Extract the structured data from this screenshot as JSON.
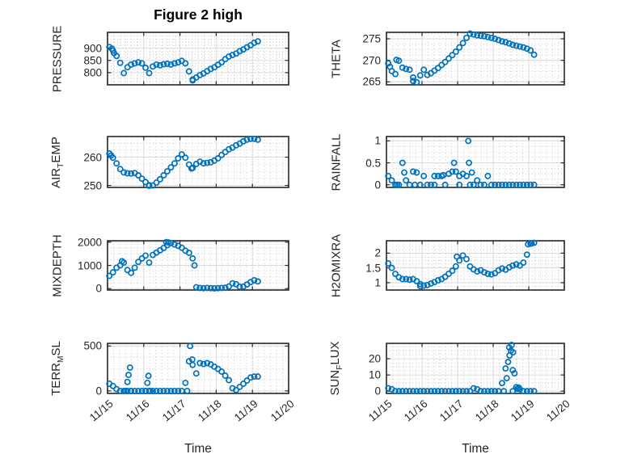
{
  "title": "Figure 2 high",
  "colors": {
    "marker": "#0072BD",
    "axes_box": "#262626",
    "major_grid": "#d9d9d9",
    "minor_grid": "#c9c9c9",
    "text": "#262626",
    "background": "#ffffff"
  },
  "chart_data": {
    "type": "scatter",
    "marker": "open-circle",
    "grid": "major solid + dotted minor grid",
    "legend": "none",
    "x_unit": "days since 11/15 00:00",
    "t_start": 0.05,
    "t_step": 0.1,
    "n_points": 42,
    "x_axis": {
      "xlim": [
        0,
        5
      ],
      "tick_values": [
        0,
        1,
        2,
        3,
        4,
        5
      ],
      "tick_labels": [
        "11/15",
        "11/16",
        "11/17",
        "11/18",
        "11/19",
        "11/20"
      ],
      "xlabel": "Time",
      "minor_per_day": 6
    },
    "subplots": [
      {
        "name": "PRESSURE",
        "ylabel_parts": [
          "PRESSURE",
          "",
          ""
        ],
        "ytick_values": [
          800,
          850,
          900
        ],
        "ytick_labels": [
          "800",
          "850",
          "900"
        ],
        "ylim": [
          750,
          965
        ],
        "show_x_tick_labels": false,
        "values": [
          905,
          890,
          868,
          840,
          798,
          822,
          833,
          838,
          842,
          838,
          820,
          798,
          825,
          833,
          830,
          834,
          836,
          833,
          838,
          842,
          848,
          838,
          805,
          772,
          780,
          790,
          797,
          806,
          815,
          822,
          832,
          842,
          855,
          866,
          872,
          878,
          888,
          895,
          904,
          912,
          922,
          928
        ],
        "extra_points": [
          [
            0.12,
            898
          ],
          [
            0.18,
            880
          ],
          [
            2.35,
            768
          ]
        ]
      },
      {
        "name": "THETA",
        "ylabel_parts": [
          "THETA",
          "",
          ""
        ],
        "ytick_values": [
          265,
          270,
          275
        ],
        "ytick_labels": [
          "265",
          "270",
          "275"
        ],
        "ylim": [
          264.3,
          276.5
        ],
        "show_x_tick_labels": false,
        "values": [
          269.3,
          267.5,
          266.8,
          269.9,
          268.3,
          268.0,
          267.8,
          266.0,
          264.9,
          266.5,
          267.8,
          266.6,
          267.0,
          267.6,
          268.2,
          268.9,
          269.6,
          270.4,
          271.2,
          272.0,
          273.0,
          274.0,
          275.2,
          276.2,
          276.0,
          275.8,
          275.7,
          275.6,
          275.4,
          275.2,
          275.0,
          274.7,
          274.4,
          274.2,
          273.9,
          273.6,
          273.4,
          273.2,
          273.0,
          272.7,
          272.3,
          271.3
        ],
        "extra_points": [
          [
            0.1,
            268.5
          ],
          [
            0.28,
            270.1
          ],
          [
            0.75,
            265.2
          ]
        ]
      },
      {
        "name": "AIR_TEMP",
        "ylabel_parts": [
          "AIR",
          "T",
          "EMP"
        ],
        "ytick_values": [
          250,
          260
        ],
        "ytick_labels": [
          "250",
          "260"
        ],
        "ylim": [
          249.3,
          267.3
        ],
        "show_x_tick_labels": false,
        "values": [
          261.3,
          259.8,
          257.8,
          255.8,
          254.6,
          254.3,
          254.2,
          254.4,
          253.6,
          252.4,
          251.2,
          250.1,
          250.0,
          251.0,
          252.2,
          253.6,
          255.0,
          256.4,
          257.8,
          259.6,
          261.0,
          259.8,
          257.4,
          256.2,
          257.6,
          258.4,
          257.8,
          258.0,
          258.2,
          258.8,
          259.6,
          260.8,
          261.8,
          262.8,
          263.4,
          264.2,
          264.8,
          265.6,
          266.2,
          266.5,
          266.5,
          266.2
        ],
        "extra_points": [
          [
            0.1,
            260.6
          ],
          [
            1.15,
            249.9
          ],
          [
            2.32,
            256.0
          ]
        ]
      },
      {
        "name": "RAINFALL",
        "ylabel_parts": [
          "RAINFALL",
          "",
          ""
        ],
        "ytick_values": [
          0,
          0.5,
          1
        ],
        "ytick_labels": [
          "0",
          "0.5",
          "1"
        ],
        "ylim": [
          -0.06,
          1.1
        ],
        "show_x_tick_labels": false,
        "values": [
          0.2,
          0.1,
          0,
          0,
          0.5,
          0.1,
          0,
          0.3,
          0.28,
          0,
          0.2,
          0,
          0,
          0.2,
          0.2,
          0.2,
          0,
          0.25,
          0.3,
          0.3,
          0.2,
          0.25,
          0.2,
          0,
          0,
          0.1,
          0,
          0,
          0.2,
          0,
          0,
          0,
          0,
          0,
          0,
          0,
          0,
          0,
          0,
          0,
          0,
          0
        ],
        "extra_points": [
          [
            2.3,
            1.0
          ],
          [
            2.32,
            0.5
          ],
          [
            2.4,
            0.28
          ],
          [
            0.5,
            0.28
          ],
          [
            1.9,
            0.5
          ],
          [
            1.35,
            0
          ],
          [
            0.3,
            0
          ],
          [
            0.8,
            0
          ],
          [
            2.05,
            0
          ],
          [
            1.6,
            0.22
          ]
        ]
      },
      {
        "name": "MIXDEPTH",
        "ylabel_parts": [
          "MIXDEPTH",
          "",
          ""
        ],
        "ytick_values": [
          0,
          1000,
          2000
        ],
        "ytick_labels": [
          "0",
          "1000",
          "2000"
        ],
        "ylim": [
          -60,
          2060
        ],
        "show_x_tick_labels": false,
        "values": [
          550,
          700,
          900,
          1000,
          1120,
          800,
          680,
          900,
          1150,
          1300,
          1420,
          1120,
          1450,
          1550,
          1650,
          1750,
          1870,
          1960,
          1900,
          1840,
          1760,
          1630,
          1540,
          1300,
          60,
          30,
          20,
          30,
          20,
          10,
          20,
          30,
          40,
          90,
          230,
          190,
          80,
          90,
          180,
          280,
          360,
          310
        ],
        "extra_points": [
          [
            2.4,
            1000
          ],
          [
            1.62,
            2000
          ],
          [
            0.4,
            1180
          ],
          [
            1.68,
            1990
          ]
        ]
      },
      {
        "name": "H2OMIXRA",
        "ylabel_parts": [
          "H2OMIXRA",
          "",
          ""
        ],
        "ytick_values": [
          1,
          1.5,
          2
        ],
        "ytick_labels": [
          "1",
          "1.5",
          "2"
        ],
        "ylim": [
          0.75,
          2.42
        ],
        "show_x_tick_labels": false,
        "values": [
          1.65,
          1.5,
          1.3,
          1.18,
          1.12,
          1.12,
          1.1,
          1.12,
          1.05,
          0.95,
          0.9,
          0.92,
          0.97,
          1.02,
          1.08,
          1.12,
          1.2,
          1.3,
          1.4,
          1.55,
          1.75,
          1.92,
          1.8,
          1.55,
          1.45,
          1.38,
          1.42,
          1.35,
          1.3,
          1.28,
          1.32,
          1.42,
          1.48,
          1.44,
          1.52,
          1.58,
          1.62,
          1.58,
          1.68,
          1.95,
          2.32,
          2.35
        ],
        "extra_points": [
          [
            3.98,
            2.3
          ],
          [
            4.08,
            2.33
          ],
          [
            1.98,
            1.88
          ],
          [
            0.95,
            0.88
          ]
        ]
      },
      {
        "name": "TERR_MSL",
        "ylabel_parts": [
          "TERR",
          "M",
          "SL"
        ],
        "ytick_values": [
          0,
          500
        ],
        "ytick_labels": [
          "0",
          "500"
        ],
        "ylim": [
          -28,
          530
        ],
        "show_x_tick_labels": true,
        "values": [
          80,
          55,
          20,
          0,
          0,
          0,
          0,
          0,
          0,
          0,
          0,
          0,
          0,
          0,
          0,
          0,
          0,
          0,
          0,
          0,
          0,
          90,
          330,
          290,
          195,
          310,
          300,
          310,
          295,
          270,
          245,
          215,
          170,
          120,
          30,
          10,
          45,
          80,
          115,
          150,
          160,
          160
        ],
        "extra_points": [
          [
            0.55,
            100
          ],
          [
            0.58,
            178
          ],
          [
            0.62,
            260
          ],
          [
            1.1,
            90
          ],
          [
            1.13,
            168
          ],
          [
            2.28,
            500
          ],
          [
            2.2,
            0
          ],
          [
            0.5,
            0
          ],
          [
            0.65,
            0
          ],
          [
            1.05,
            0
          ],
          [
            1.18,
            0
          ],
          [
            2.34,
            350
          ]
        ]
      },
      {
        "name": "SUN_FLUX",
        "ylabel_parts": [
          "SUN",
          "F",
          "LUX"
        ],
        "ytick_values": [
          0,
          10,
          20
        ],
        "ytick_labels": [
          "0",
          "10",
          "20"
        ],
        "ylim": [
          -1.4,
          29.5
        ],
        "show_x_tick_labels": true,
        "values": [
          1.8,
          1.2,
          0,
          0,
          0,
          0,
          0,
          0,
          0,
          0,
          0,
          0,
          0,
          0,
          0,
          0,
          0,
          0,
          0,
          0,
          0,
          0,
          0,
          0,
          1.8,
          1.2,
          0,
          0,
          0,
          0,
          0,
          0,
          5,
          14,
          27,
          13,
          2.5,
          1.2,
          0,
          0,
          0,
          0
        ],
        "extra_points": [
          [
            3.38,
            8
          ],
          [
            3.42,
            18
          ],
          [
            3.46,
            22
          ],
          [
            3.5,
            25
          ],
          [
            3.52,
            28.5
          ],
          [
            3.56,
            24
          ],
          [
            3.6,
            11
          ],
          [
            3.68,
            1.5
          ],
          [
            3.72,
            2.2
          ],
          [
            3.3,
            0
          ],
          [
            3.55,
            0
          ]
        ]
      }
    ]
  }
}
